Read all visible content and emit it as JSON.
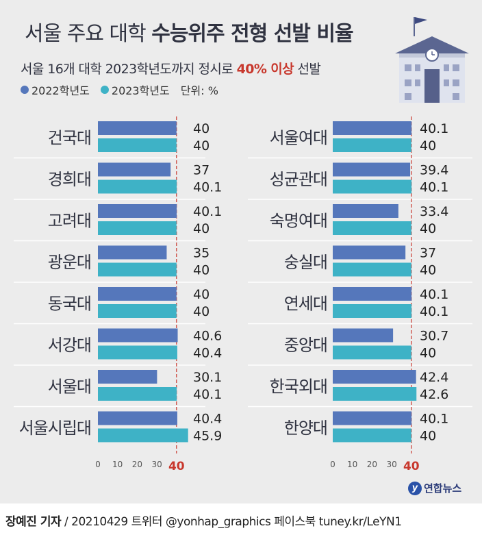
{
  "title_light": "서울 주요 대학 ",
  "title_bold": "수능위주 전형 선발 비율",
  "subtitle_pre": "서울 16개 대학 2023학년도까지 정시로 ",
  "subtitle_highlight": "40% 이상",
  "subtitle_post": " 선발",
  "legend": {
    "series1": "2022학년도",
    "series2": "2023학년도",
    "unit": "단위: %"
  },
  "colors": {
    "series1": "#5577bb",
    "series2": "#3eb2c6",
    "reference": "#c8382d",
    "panel": "#ececec"
  },
  "footer": {
    "author": "장예진 기자",
    "rest": " / 20210429 트위터 @yonhap_graphics  페이스북 tuney.kr/LeYN1"
  },
  "logo": {
    "text": "연합뉴스"
  },
  "chart_data": [
    {
      "type": "bar",
      "orientation": "horizontal",
      "categories": [
        "건국대",
        "경희대",
        "고려대",
        "광운대",
        "동국대",
        "서강대",
        "서울대",
        "서울시립대"
      ],
      "series": [
        {
          "name": "2022학년도",
          "values": [
            40,
            37,
            40.1,
            35,
            40,
            40.6,
            30.1,
            40.4
          ]
        },
        {
          "name": "2023학년도",
          "values": [
            40,
            40.1,
            40,
            40,
            40,
            40.4,
            40.1,
            45.9
          ]
        }
      ],
      "xticks": [
        "0",
        "10",
        "20",
        "30",
        "40"
      ],
      "xlim": [
        0,
        46
      ],
      "reference_line": 40
    },
    {
      "type": "bar",
      "orientation": "horizontal",
      "categories": [
        "서울여대",
        "성균관대",
        "숙명여대",
        "숭실대",
        "연세대",
        "중앙대",
        "한국외대",
        "한양대"
      ],
      "series": [
        {
          "name": "2022학년도",
          "values": [
            40.1,
            39.4,
            33.4,
            37,
            40.1,
            30.7,
            42.4,
            40.1
          ]
        },
        {
          "name": "2023학년도",
          "values": [
            40,
            40.1,
            40,
            40,
            40.1,
            40,
            42.6,
            40
          ]
        }
      ],
      "xticks": [
        "0",
        "10",
        "20",
        "30",
        "40"
      ],
      "xlim": [
        0,
        46
      ],
      "reference_line": 40
    }
  ]
}
